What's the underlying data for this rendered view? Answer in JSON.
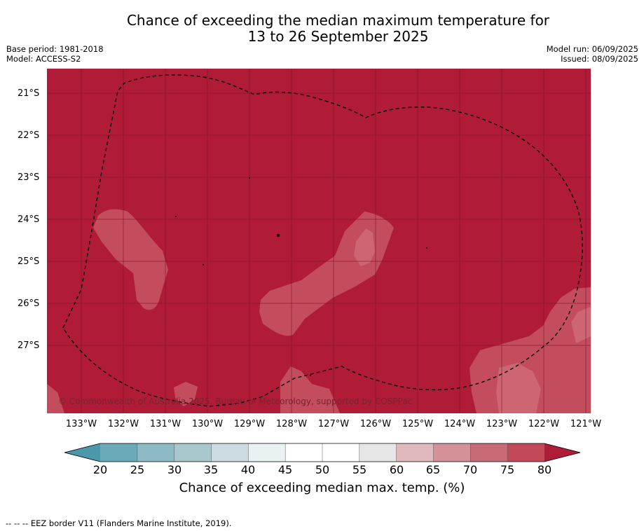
{
  "title": {
    "line1": "Chance of exceeding the median maximum temperature for",
    "line2": "13 to 26 September 2025"
  },
  "meta": {
    "base_period": "Base period: 1981-2018",
    "model": "Model: ACCESS-S2",
    "model_run": "Model run: 06/09/2025",
    "issued": "Issued: 08/09/2025"
  },
  "map": {
    "latitude_labels": [
      "21°S",
      "22°S",
      "23°S",
      "24°S",
      "25°S",
      "26°S",
      "27°S"
    ],
    "longitude_labels": [
      "133°W",
      "132°W",
      "131°W",
      "130°W",
      "129°W",
      "128°W",
      "127°W",
      "126°W",
      "125°W",
      "124°W",
      "123°W",
      "122°W",
      "121°W"
    ],
    "copyright": "© Commonwealth of Australia 2025, Bureau of Meteorology, supported by COSPPac",
    "background_color": "#b01c38",
    "band_75_80_color": "#c34d5d",
    "band_70_75_color": "#cd6672"
  },
  "colorbar": {
    "ticks": [
      "20",
      "25",
      "30",
      "35",
      "40",
      "45",
      "50",
      "55",
      "60",
      "65",
      "70",
      "75",
      "80"
    ],
    "colors": [
      "#6baab9",
      "#8ebac5",
      "#a9c8ce",
      "#cbdbdf",
      "#eaf1f3",
      "#ffffff",
      "#ffffff",
      "#e6e6e6",
      "#e0b9be",
      "#d59198",
      "#c86b76",
      "#c24a58"
    ],
    "low_extend_color": "#4a98aa",
    "high_extend_color": "#b01c38",
    "label": "Chance of exceeding median max. temp. (%)"
  },
  "footer": "--  --  -- EEZ border V11 (Flanders Marine Institute, 2019)."
}
